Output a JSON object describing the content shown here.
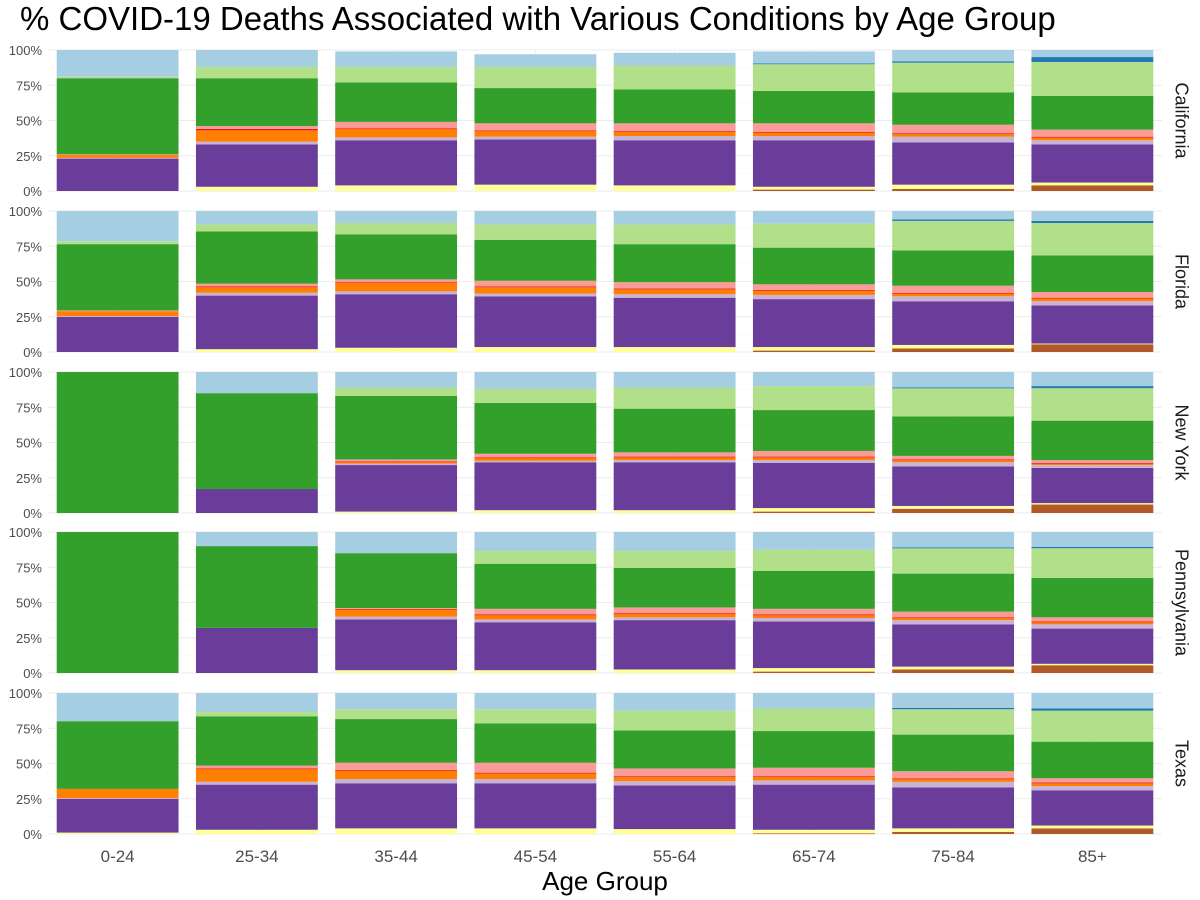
{
  "chart_data": {
    "type": "bar",
    "stacked": true,
    "title": "% COVID-19 Deaths Associated with Various Conditions by Age Group",
    "xlabel": "Age Group",
    "ylabel": "",
    "ylim": [
      0,
      1
    ],
    "y_ticks": [
      "0%",
      "25%",
      "50%",
      "75%",
      "100%"
    ],
    "grid": true,
    "legend": "none",
    "categories": [
      "0-24",
      "25-34",
      "35-44",
      "45-54",
      "55-64",
      "65-74",
      "75-84",
      "85+"
    ],
    "stack_order_bottom_to_top": [
      "brown",
      "yellow",
      "purple",
      "lavender",
      "orange",
      "red",
      "salmon",
      "green",
      "light green",
      "blue",
      "light blue"
    ],
    "colors": {
      "brown": "#b15928",
      "yellow": "#ffff99",
      "purple": "#6a3d9a",
      "lavender": "#cab2d6",
      "orange": "#ff7f00",
      "red": "#e31a1c",
      "salmon": "#fb9a99",
      "green": "#33a02c",
      "light green": "#b2df8a",
      "blue": "#1f78b4",
      "light blue": "#a6cee3"
    },
    "panels": [
      {
        "state": "California",
        "segments": [
          [
            0,
            0,
            0.23,
            0.005,
            0.02,
            0,
            0.005,
            0.54,
            0.01,
            0,
            0.19
          ],
          [
            0,
            0.03,
            0.3,
            0.02,
            0.08,
            0.01,
            0.02,
            0.34,
            0.08,
            0,
            0.12
          ],
          [
            0,
            0.04,
            0.32,
            0.02,
            0.06,
            0.005,
            0.045,
            0.28,
            0.11,
            0,
            0.11
          ],
          [
            0,
            0.045,
            0.32,
            0.02,
            0.04,
            0.005,
            0.05,
            0.25,
            0.15,
            0,
            0.09
          ],
          [
            0,
            0.04,
            0.32,
            0.03,
            0.03,
            0.005,
            0.055,
            0.24,
            0.17,
            0,
            0.09
          ],
          [
            0.01,
            0.02,
            0.33,
            0.03,
            0.025,
            0.005,
            0.06,
            0.23,
            0.19,
            0.005,
            0.085
          ],
          [
            0.015,
            0.03,
            0.3,
            0.04,
            0.02,
            0.005,
            0.06,
            0.23,
            0.21,
            0.01,
            0.08
          ],
          [
            0.04,
            0.02,
            0.27,
            0.03,
            0.02,
            0.005,
            0.05,
            0.24,
            0.24,
            0.035,
            0.05
          ]
        ]
      },
      {
        "state": "Florida",
        "segments": [
          [
            0,
            0,
            0.25,
            0.005,
            0.035,
            0,
            0.005,
            0.47,
            0.02,
            0,
            0.215
          ],
          [
            0,
            0.02,
            0.38,
            0.02,
            0.04,
            0.005,
            0.02,
            0.37,
            0.05,
            0,
            0.095
          ],
          [
            0,
            0.03,
            0.38,
            0.02,
            0.06,
            0.005,
            0.02,
            0.32,
            0.08,
            0,
            0.085
          ],
          [
            0,
            0.035,
            0.36,
            0.02,
            0.045,
            0.005,
            0.04,
            0.29,
            0.11,
            0,
            0.095
          ],
          [
            0,
            0.035,
            0.35,
            0.025,
            0.035,
            0.005,
            0.045,
            0.27,
            0.14,
            0,
            0.095
          ],
          [
            0.01,
            0.025,
            0.34,
            0.03,
            0.03,
            0.005,
            0.04,
            0.26,
            0.17,
            0,
            0.09
          ],
          [
            0.025,
            0.025,
            0.31,
            0.035,
            0.02,
            0.005,
            0.05,
            0.25,
            0.21,
            0.01,
            0.06
          ],
          [
            0.055,
            0.005,
            0.27,
            0.03,
            0.02,
            0.005,
            0.04,
            0.26,
            0.23,
            0.015,
            0.07
          ]
        ]
      },
      {
        "state": "New York",
        "segments": [
          [
            0,
            0,
            0,
            0,
            0,
            0,
            0,
            1.0,
            0,
            0,
            0
          ],
          [
            0,
            0,
            0.17,
            0,
            0,
            0,
            0,
            0.68,
            0,
            0,
            0.15
          ],
          [
            0,
            0.01,
            0.33,
            0.01,
            0.01,
            0.005,
            0.015,
            0.45,
            0.06,
            0,
            0.11
          ],
          [
            0,
            0.02,
            0.34,
            0.01,
            0.02,
            0.005,
            0.025,
            0.36,
            0.1,
            0,
            0.12
          ],
          [
            0,
            0.02,
            0.34,
            0.015,
            0.02,
            0.005,
            0.03,
            0.31,
            0.15,
            0,
            0.11
          ],
          [
            0.01,
            0.025,
            0.32,
            0.02,
            0.02,
            0.005,
            0.04,
            0.29,
            0.17,
            0,
            0.1
          ],
          [
            0.03,
            0.02,
            0.28,
            0.03,
            0.015,
            0.005,
            0.025,
            0.28,
            0.2,
            0.005,
            0.11
          ],
          [
            0.06,
            0.01,
            0.25,
            0.02,
            0.01,
            0.005,
            0.02,
            0.28,
            0.23,
            0.015,
            0.1
          ]
        ]
      },
      {
        "state": "Pennsylvania",
        "segments": [
          [
            0,
            0,
            0,
            0,
            0,
            0,
            0,
            1.0,
            0,
            0,
            0
          ],
          [
            0,
            0,
            0.32,
            0,
            0,
            0,
            0,
            0.58,
            0,
            0,
            0.1
          ],
          [
            0,
            0.02,
            0.36,
            0.02,
            0.05,
            0.005,
            0.005,
            0.39,
            0,
            0,
            0.15
          ],
          [
            0,
            0.02,
            0.34,
            0.02,
            0.03,
            0.005,
            0.04,
            0.32,
            0.09,
            0,
            0.135
          ],
          [
            0,
            0.025,
            0.35,
            0.02,
            0.025,
            0.005,
            0.04,
            0.28,
            0.12,
            0,
            0.135
          ],
          [
            0.01,
            0.025,
            0.33,
            0.025,
            0.02,
            0.005,
            0.04,
            0.27,
            0.15,
            0,
            0.125
          ],
          [
            0.025,
            0.02,
            0.3,
            0.03,
            0.015,
            0.005,
            0.04,
            0.27,
            0.18,
            0.005,
            0.11
          ],
          [
            0.055,
            0.01,
            0.25,
            0.03,
            0.015,
            0.005,
            0.03,
            0.28,
            0.21,
            0.01,
            0.105
          ]
        ]
      },
      {
        "state": "Texas",
        "segments": [
          [
            0,
            0.01,
            0.24,
            0.005,
            0.065,
            0,
            0,
            0.48,
            0,
            0,
            0.2
          ],
          [
            0,
            0.03,
            0.32,
            0.02,
            0.09,
            0.005,
            0.02,
            0.35,
            0.03,
            0,
            0.135
          ],
          [
            0,
            0.04,
            0.32,
            0.03,
            0.06,
            0.005,
            0.05,
            0.31,
            0.07,
            0,
            0.115
          ],
          [
            0,
            0.04,
            0.32,
            0.03,
            0.04,
            0.005,
            0.07,
            0.28,
            0.1,
            0,
            0.115
          ],
          [
            0,
            0.035,
            0.31,
            0.03,
            0.03,
            0.005,
            0.055,
            0.27,
            0.14,
            0,
            0.125
          ],
          [
            0.005,
            0.025,
            0.32,
            0.03,
            0.025,
            0.005,
            0.06,
            0.26,
            0.16,
            0,
            0.11
          ],
          [
            0.015,
            0.025,
            0.29,
            0.04,
            0.02,
            0.005,
            0.05,
            0.26,
            0.18,
            0.01,
            0.105
          ],
          [
            0.04,
            0.02,
            0.25,
            0.03,
            0.02,
            0.005,
            0.03,
            0.26,
            0.22,
            0.015,
            0.11
          ]
        ]
      }
    ]
  }
}
